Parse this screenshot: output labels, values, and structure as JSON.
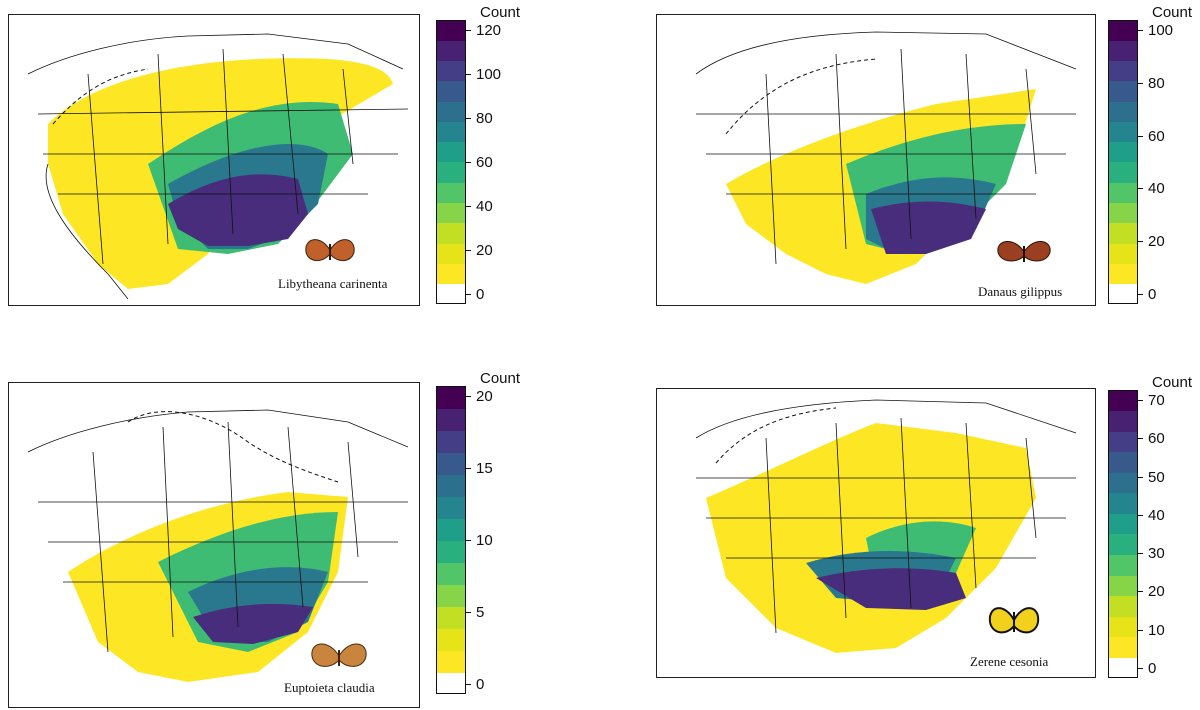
{
  "legend_title": "Count",
  "colormap": [
    "#ffffff",
    "#fde725",
    "#e6e419",
    "#c2df23",
    "#86d549",
    "#52c569",
    "#2ab07f",
    "#1f9e89",
    "#25858e",
    "#2d708e",
    "#38598c",
    "#433e85",
    "#482173",
    "#440154"
  ],
  "panels": [
    {
      "id": "libytheana",
      "species": "Libytheana carinenta",
      "butterfly_icon": "orange-butterfly-icon",
      "butterfly_color": "#c0602a",
      "ticks": [
        "0",
        "20",
        "40",
        "60",
        "80",
        "100",
        "120"
      ]
    },
    {
      "id": "danaus",
      "species": "Danaus gilippus",
      "butterfly_icon": "brown-butterfly-icon",
      "butterfly_color": "#9a3f1f",
      "ticks": [
        "0",
        "20",
        "40",
        "60",
        "80",
        "100"
      ]
    },
    {
      "id": "euptoieta",
      "species": "Euptoieta claudia",
      "butterfly_icon": "tan-butterfly-icon",
      "butterfly_color": "#c9853d",
      "ticks": [
        "0",
        "5",
        "10",
        "15",
        "20"
      ]
    },
    {
      "id": "zerene",
      "species": "Zerene cesonia",
      "butterfly_icon": "yellow-butterfly-icon",
      "butterfly_color": "#f2d11c",
      "ticks": [
        "0",
        "10",
        "20",
        "30",
        "40",
        "50",
        "60",
        "70"
      ]
    }
  ]
}
